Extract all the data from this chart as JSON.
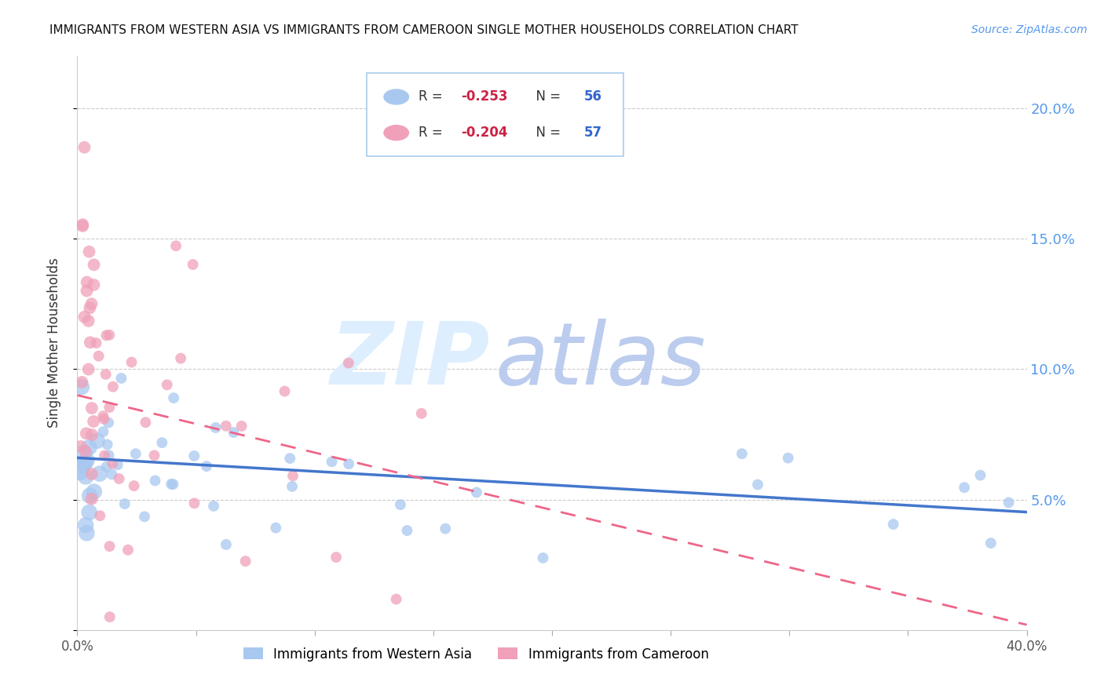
{
  "title": "IMMIGRANTS FROM WESTERN ASIA VS IMMIGRANTS FROM CAMEROON SINGLE MOTHER HOUSEHOLDS CORRELATION CHART",
  "source": "Source: ZipAtlas.com",
  "ylabel": "Single Mother Households",
  "xlim": [
    0.0,
    0.4
  ],
  "ylim": [
    0.0,
    0.22
  ],
  "western_asia_color": "#A8C8F0",
  "cameroon_color": "#F0A0B8",
  "western_asia_line_color": "#4477CC",
  "cameroon_line_color": "#EE6688",
  "legend_R_western_val": "-0.253",
  "legend_N_western_val": "56",
  "legend_R_cameroon_val": "-0.204",
  "legend_N_cameroon_val": "57",
  "legend_label_western": "Immigrants from Western Asia",
  "legend_label_cameroon": "Immigrants from Cameroon",
  "watermark_zip": "ZIP",
  "watermark_atlas": "atlas",
  "watermark_color_zip": "#DDEEFF",
  "watermark_color_atlas": "#BBCCEE",
  "background_color": "#FFFFFF",
  "right_axis_color": "#5599EE",
  "r_color": "#CC2244",
  "n_color": "#3366CC"
}
